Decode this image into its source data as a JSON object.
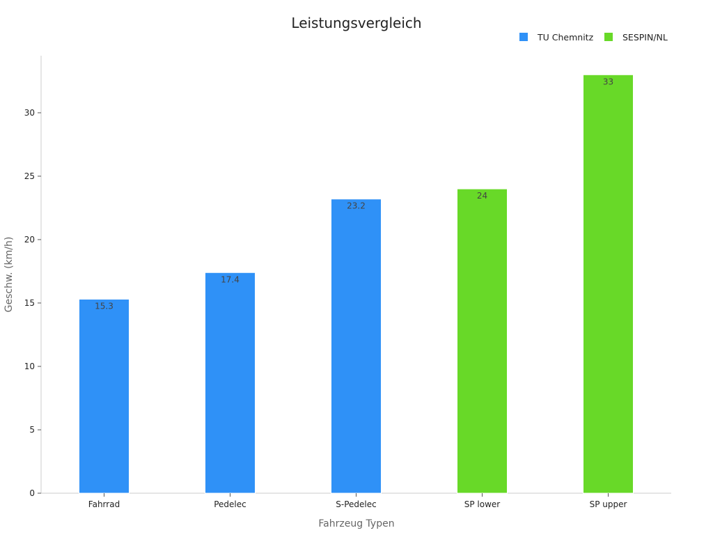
{
  "chart_data": {
    "type": "bar",
    "title": "Leistungsvergleich",
    "xlabel": "Fahrzeug Typen",
    "ylabel": "Geschw. (km/h)",
    "categories": [
      "Fahrrad",
      "Pedelec",
      "S-Pedelec",
      "SP lower",
      "SP upper"
    ],
    "series": [
      {
        "name": "TU Chemnitz",
        "color": "#2f91f7",
        "values": [
          15.3,
          17.4,
          23.2,
          null,
          null
        ]
      },
      {
        "name": "SESPIN/NL",
        "color": "#68d928",
        "values": [
          null,
          null,
          null,
          24,
          33
        ]
      }
    ],
    "ylim": [
      0,
      34.5
    ],
    "yticks": [
      0,
      5,
      10,
      15,
      20,
      25,
      30
    ],
    "grid": false,
    "legend_position": "top-right",
    "data_labels": true
  }
}
